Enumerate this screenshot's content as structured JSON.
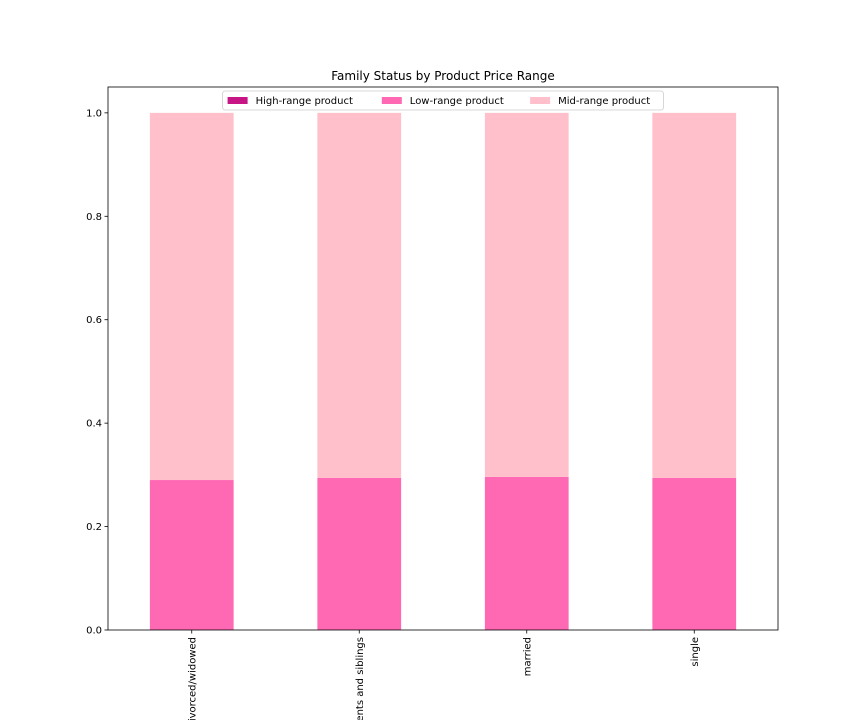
{
  "chart_data": {
    "type": "bar",
    "stacked": true,
    "title": "Family Status by Product Price Range",
    "xlabel": "",
    "ylabel": "",
    "categories": [
      "divorced/widowed",
      "parents and siblings",
      "married",
      "single"
    ],
    "series": [
      {
        "name": "High-range product",
        "color": "#c71585",
        "values": [
          0.0,
          0.0,
          0.0,
          0.0
        ]
      },
      {
        "name": "Low-range product",
        "color": "#ff69b4",
        "values": [
          0.29,
          0.294,
          0.296,
          0.294
        ]
      },
      {
        "name": "Mid-range product",
        "color": "#ffc0cb",
        "values": [
          0.71,
          0.706,
          0.704,
          0.706
        ]
      }
    ],
    "ylim": [
      0,
      1.05
    ],
    "yticks": [
      "0.0",
      "0.2",
      "0.4",
      "0.6",
      "0.8",
      "1.0"
    ],
    "legend_position": "top-center",
    "grid": false
  }
}
